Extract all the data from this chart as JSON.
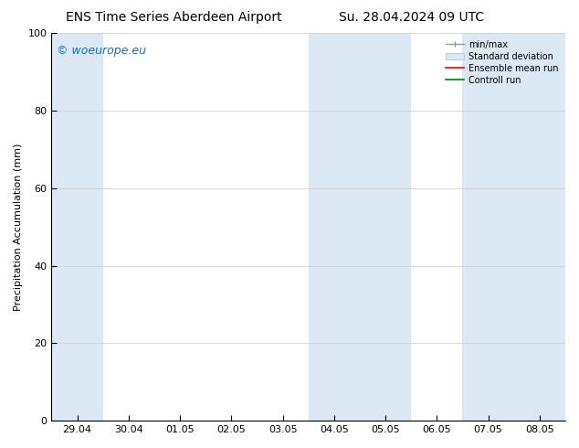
{
  "title_left": "ENS Time Series Aberdeen Airport",
  "title_right": "Su. 28.04.2024 09 UTC",
  "ylabel": "Precipitation Accumulation (mm)",
  "ylim": [
    0,
    100
  ],
  "yticks": [
    0,
    20,
    40,
    60,
    80,
    100
  ],
  "x_labels": [
    "29.04",
    "30.04",
    "01.05",
    "02.05",
    "03.05",
    "04.05",
    "05.05",
    "06.05",
    "07.05",
    "08.05"
  ],
  "x_values": [
    0,
    1,
    2,
    3,
    4,
    5,
    6,
    7,
    8,
    9
  ],
  "xlim": [
    -0.5,
    9.5
  ],
  "shaded_regions": [
    {
      "x_start": -0.5,
      "x_end": 0.5,
      "color": "#dce9f5"
    },
    {
      "x_start": 4.5,
      "x_end": 6.5,
      "color": "#dce9f5"
    },
    {
      "x_start": 7.5,
      "x_end": 9.5,
      "color": "#dce9f5"
    }
  ],
  "watermark_text": "© woeurope.eu",
  "watermark_color": "#1a6fc4",
  "legend_labels": [
    "min/max",
    "Standard deviation",
    "Ensemble mean run",
    "Controll run"
  ],
  "legend_colors": [
    "#aaaaaa",
    "#dce9f5",
    "red",
    "green"
  ],
  "background_color": "#ffffff",
  "plot_bg_color": "#ffffff",
  "font_size": 8,
  "title_font_size": 10,
  "ylabel_font_size": 8
}
